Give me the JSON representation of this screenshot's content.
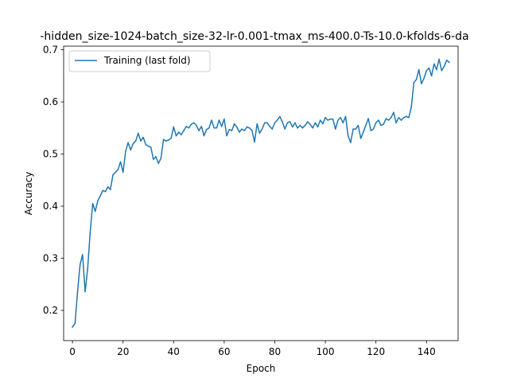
{
  "chart_data": {
    "type": "line",
    "title": "-hidden_size-1024-batch_size-32-lr-0.001-tmax_ms-400.0-Ts-10.0-kfolds-6-da",
    "xlabel": "Epoch",
    "ylabel": "Accuracy",
    "xlim": [
      -3.5,
      152.5
    ],
    "ylim": [
      0.142,
      0.707
    ],
    "xticks": [
      0,
      20,
      40,
      60,
      80,
      100,
      120,
      140
    ],
    "yticks": [
      0.2,
      0.3,
      0.4,
      0.5,
      0.6,
      0.7
    ],
    "xtick_labels": [
      "0",
      "20",
      "40",
      "60",
      "80",
      "100",
      "120",
      "140"
    ],
    "ytick_labels": [
      "0.2",
      "0.3",
      "0.4",
      "0.5",
      "0.6",
      "0.7"
    ],
    "grid": false,
    "legend_position": "upper-left",
    "color": "#1f77b4",
    "series": [
      {
        "name": "Training (last fold)",
        "x": [
          0,
          1,
          2,
          3,
          4,
          5,
          6,
          7,
          8,
          9,
          10,
          11,
          12,
          13,
          14,
          15,
          16,
          17,
          18,
          19,
          20,
          21,
          22,
          23,
          24,
          25,
          26,
          27,
          28,
          29,
          30,
          31,
          32,
          33,
          34,
          35,
          36,
          37,
          38,
          39,
          40,
          41,
          42,
          43,
          44,
          45,
          46,
          47,
          48,
          49,
          50,
          51,
          52,
          53,
          54,
          55,
          56,
          57,
          58,
          59,
          60,
          61,
          62,
          63,
          64,
          65,
          66,
          67,
          68,
          69,
          70,
          71,
          72,
          73,
          74,
          75,
          76,
          77,
          78,
          79,
          80,
          81,
          82,
          83,
          84,
          85,
          86,
          87,
          88,
          89,
          90,
          91,
          92,
          93,
          94,
          95,
          96,
          97,
          98,
          99,
          100,
          101,
          102,
          103,
          104,
          105,
          106,
          107,
          108,
          109,
          110,
          111,
          112,
          113,
          114,
          115,
          116,
          117,
          118,
          119,
          120,
          121,
          122,
          123,
          124,
          125,
          126,
          127,
          128,
          129,
          130,
          131,
          132,
          133,
          134,
          135,
          136,
          137,
          138,
          139,
          140,
          141,
          142,
          143,
          144,
          145,
          146,
          147,
          148,
          149
        ],
        "values": [
          0.168,
          0.175,
          0.235,
          0.288,
          0.307,
          0.236,
          0.28,
          0.35,
          0.405,
          0.39,
          0.41,
          0.42,
          0.43,
          0.428,
          0.437,
          0.432,
          0.46,
          0.465,
          0.47,
          0.485,
          0.465,
          0.505,
          0.522,
          0.508,
          0.52,
          0.525,
          0.54,
          0.525,
          0.532,
          0.518,
          0.515,
          0.513,
          0.49,
          0.495,
          0.482,
          0.492,
          0.528,
          0.525,
          0.527,
          0.53,
          0.552,
          0.535,
          0.542,
          0.537,
          0.545,
          0.553,
          0.55,
          0.557,
          0.56,
          0.555,
          0.545,
          0.553,
          0.535,
          0.547,
          0.55,
          0.565,
          0.55,
          0.55,
          0.565,
          0.553,
          0.567,
          0.535,
          0.547,
          0.545,
          0.558,
          0.552,
          0.542,
          0.548,
          0.545,
          0.552,
          0.55,
          0.545,
          0.523,
          0.558,
          0.54,
          0.548,
          0.56,
          0.56,
          0.553,
          0.548,
          0.56,
          0.565,
          0.572,
          0.562,
          0.548,
          0.56,
          0.562,
          0.552,
          0.56,
          0.55,
          0.555,
          0.55,
          0.555,
          0.562,
          0.557,
          0.55,
          0.56,
          0.552,
          0.565,
          0.558,
          0.57,
          0.565,
          0.567,
          0.567,
          0.548,
          0.565,
          0.57,
          0.56,
          0.572,
          0.535,
          0.522,
          0.548,
          0.548,
          0.555,
          0.53,
          0.542,
          0.555,
          0.568,
          0.545,
          0.548,
          0.56,
          0.565,
          0.555,
          0.557,
          0.568,
          0.565,
          0.57,
          0.58,
          0.56,
          0.57,
          0.565,
          0.57,
          0.572,
          0.57,
          0.59,
          0.637,
          0.643,
          0.662,
          0.635,
          0.645,
          0.66,
          0.665,
          0.65,
          0.673,
          0.662,
          0.682,
          0.66,
          0.668,
          0.68,
          0.676
        ]
      }
    ]
  }
}
